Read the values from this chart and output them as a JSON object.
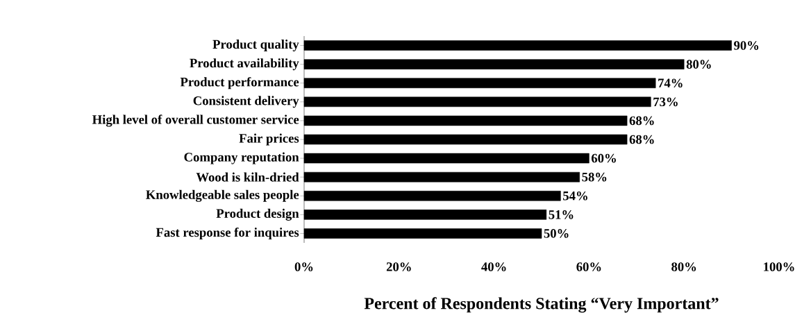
{
  "chart_data": {
    "type": "bar",
    "orientation": "horizontal",
    "xlabel": "Percent of Respondents Stating “Very Important”",
    "categories": [
      "Product quality",
      "Product availability",
      "Product performance",
      "Consistent delivery",
      "High level of overall customer service",
      "Fair prices",
      "Company reputation",
      "Wood is kiln-dried",
      "Knowledgeable sales people",
      "Product design",
      "Fast response for inquires"
    ],
    "values": [
      90,
      80,
      74,
      73,
      68,
      68,
      60,
      58,
      54,
      51,
      50
    ],
    "value_labels": [
      "90%",
      "80%",
      "74%",
      "73%",
      "68%",
      "68%",
      "60%",
      "58%",
      "54%",
      "51%",
      "50%"
    ],
    "color": "#000000",
    "xlim": [
      0,
      100
    ],
    "xticks": [
      {
        "value": 0,
        "label": "0%"
      },
      {
        "value": 20,
        "label": "20%"
      },
      {
        "value": 40,
        "label": "40%"
      },
      {
        "value": 60,
        "label": "60%"
      },
      {
        "value": 80,
        "label": "80%"
      },
      {
        "value": 100,
        "label": "100%"
      }
    ]
  }
}
